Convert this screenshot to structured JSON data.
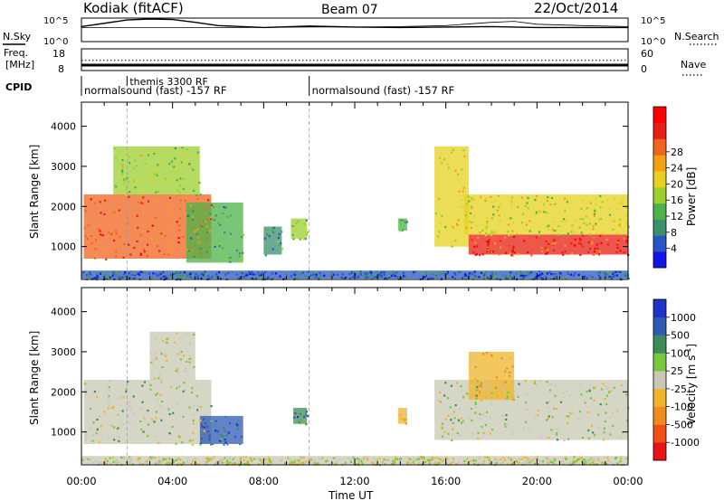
{
  "header": {
    "title": "Kodiak (fitACF)",
    "beam": "Beam 07",
    "date": "22/Oct/2014"
  },
  "chart_data": [
    {
      "type": "line",
      "panel": "noise",
      "left_label": "N.Sky",
      "right_label": "N.Search",
      "left_ticks": [
        "10^5",
        "10^0"
      ],
      "right_ticks": [
        "10^5",
        "10^0"
      ],
      "x": [
        0,
        2,
        3,
        4,
        5,
        6,
        8,
        10,
        12,
        14,
        16,
        18,
        19,
        20,
        22,
        24
      ],
      "sky": [
        3.2,
        4.6,
        4.8,
        4.7,
        4.1,
        3.4,
        3.0,
        3.3,
        3.1,
        3.0,
        3.1,
        3.2,
        3.1,
        3.0,
        3.0,
        3.0
      ],
      "search": [
        3.0,
        3.0,
        3.0,
        3.0,
        3.0,
        3.0,
        3.0,
        3.1,
        3.1,
        3.2,
        3.4,
        4.1,
        4.3,
        3.7,
        3.4,
        3.2
      ]
    },
    {
      "type": "line",
      "panel": "frequency",
      "left_label_line1": "Freq.",
      "left_label_line2": "[MHz]",
      "right_label": "Nave",
      "left_ticks": [
        "18",
        "8"
      ],
      "right_ticks": [
        "60",
        "0"
      ],
      "x": [
        0,
        24
      ],
      "freq": [
        10.5,
        10.5
      ],
      "nave": [
        28,
        28
      ]
    },
    {
      "type": "table",
      "panel": "cpid",
      "label": "CPID",
      "segments": [
        {
          "start": 0,
          "end": 10,
          "text": "normalsound (fast) -157 RF"
        },
        {
          "start": 10,
          "end": 24,
          "text": "normalsound (fast) -157 RF"
        }
      ],
      "overlay": {
        "start": 2,
        "text": "themis 3300 RF"
      }
    },
    {
      "type": "heatmap",
      "panel": "power",
      "ylabel": "Slant Range [km]",
      "ylim": [
        180,
        4600
      ],
      "yticks": [
        1000,
        2000,
        3000,
        4000
      ],
      "colorbar_label": "Power [dB]",
      "colorbar_ticks": [
        "4",
        "8",
        "12",
        "16",
        "20",
        "24",
        "28"
      ],
      "colorbar_colors": [
        "#1414e6",
        "#2855c8",
        "#3b8f6a",
        "#4cb24a",
        "#9ccf2e",
        "#e6d21e",
        "#f5a014",
        "#f0641e",
        "#e61e14",
        "#ff0000"
      ],
      "regions": [
        {
          "t0": 0.1,
          "t1": 5.7,
          "r0": 700,
          "r1": 2300,
          "level": 0.8
        },
        {
          "t0": 1.4,
          "t1": 5.2,
          "r0": 2300,
          "r1": 3500,
          "level": 0.45
        },
        {
          "t0": 4.6,
          "t1": 7.1,
          "r0": 600,
          "r1": 2100,
          "level": 0.3
        },
        {
          "t0": 8.0,
          "t1": 8.8,
          "r0": 800,
          "r1": 1500,
          "level": 0.25
        },
        {
          "t0": 9.2,
          "t1": 9.9,
          "r0": 1200,
          "r1": 1700,
          "level": 0.4
        },
        {
          "t0": 13.9,
          "t1": 14.3,
          "r0": 1400,
          "r1": 1700,
          "level": 0.35
        },
        {
          "t0": 15.5,
          "t1": 17.0,
          "r0": 1000,
          "r1": 3500,
          "level": 0.55
        },
        {
          "t0": 17.0,
          "t1": 24.0,
          "r0": 800,
          "r1": 1300,
          "level": 0.85
        },
        {
          "t0": 16.8,
          "t1": 24.0,
          "r0": 1300,
          "r1": 2300,
          "level": 0.5
        },
        {
          "t0": 0.0,
          "t1": 24.0,
          "r0": 200,
          "r1": 400,
          "level": 0.15
        }
      ]
    },
    {
      "type": "heatmap",
      "panel": "velocity",
      "ylabel": "Slant Range [km]",
      "ylim": [
        180,
        4600
      ],
      "yticks": [
        1000,
        2000,
        3000,
        4000
      ],
      "xlabel": "Time UT",
      "xticks": [
        "00:00",
        "04:00",
        "08:00",
        "12:00",
        "16:00",
        "20:00",
        "00:00"
      ],
      "colorbar_label": "Velocity [m s",
      "colorbar_label_sup": "-1",
      "colorbar_label_end": "]",
      "colorbar_ticks": [
        "1000",
        "500",
        "100",
        "25",
        "-25",
        "-100",
        "-500",
        "-1000"
      ],
      "colorbar_colors": [
        "#1e32c8",
        "#2d5ab4",
        "#3c8c5a",
        "#78c83c",
        "#c8c8b4",
        "#f0b428",
        "#f08c1e",
        "#f05014",
        "#e61414"
      ],
      "regions": [
        {
          "t0": 0.1,
          "t1": 5.7,
          "r0": 700,
          "r1": 2300,
          "level": 0.45
        },
        {
          "t0": 3.0,
          "t1": 5.0,
          "r0": 2300,
          "r1": 3500,
          "level": 0.5
        },
        {
          "t0": 5.2,
          "t1": 7.1,
          "r0": 700,
          "r1": 1400,
          "level": 0.15
        },
        {
          "t0": 9.3,
          "t1": 9.9,
          "r0": 1200,
          "r1": 1600,
          "level": 0.2
        },
        {
          "t0": 13.9,
          "t1": 14.3,
          "r0": 1200,
          "r1": 1600,
          "level": 0.62
        },
        {
          "t0": 15.5,
          "t1": 24.0,
          "r0": 800,
          "r1": 2300,
          "level": 0.45
        },
        {
          "t0": 17.0,
          "t1": 19.0,
          "r0": 1800,
          "r1": 3000,
          "level": 0.65
        },
        {
          "t0": 0.0,
          "t1": 24.0,
          "r0": 200,
          "r1": 400,
          "level": 0.5
        }
      ]
    }
  ]
}
